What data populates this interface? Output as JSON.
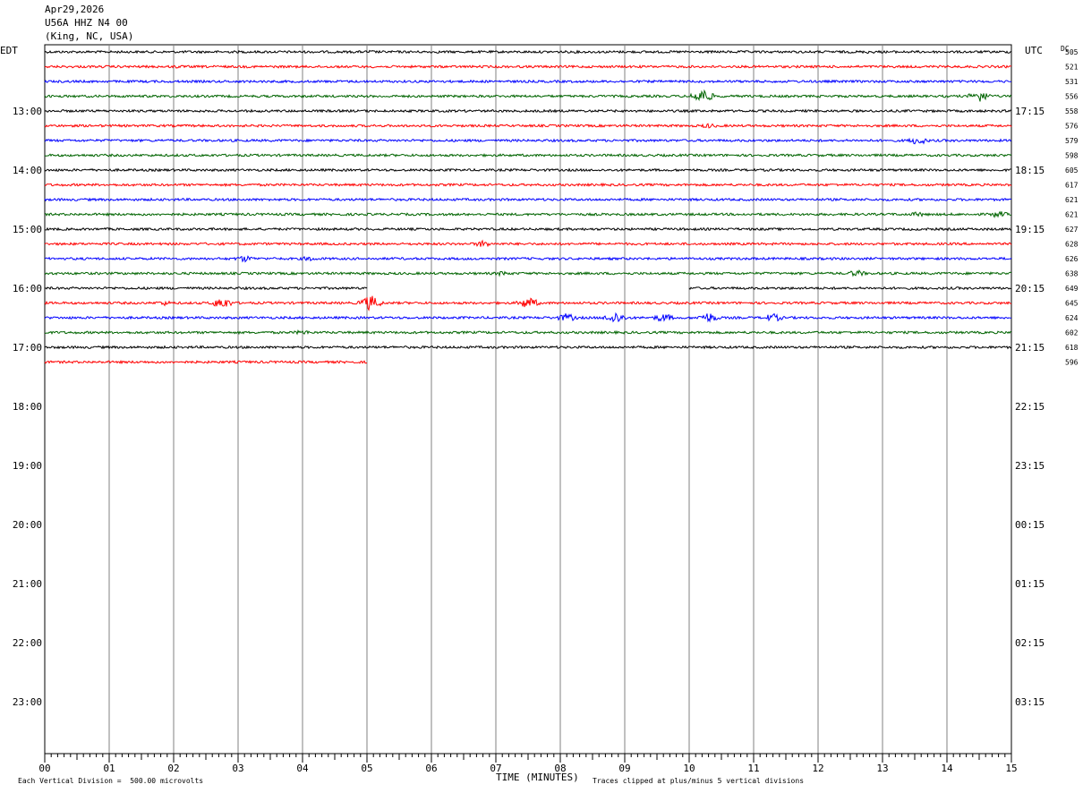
{
  "header": {
    "date": "Apr29,2026",
    "station": "U56A HHZ N4 00",
    "location": "(King, NC, USA)"
  },
  "left_tz": "EDT",
  "right_tz": "UTC",
  "dc_label": "DC",
  "xlabel": "TIME (MINUTES)",
  "footer": {
    "scale": "Each Vertical Division =  500.00 microvolts",
    "clip": "Traces clipped at plus/minus 5 vertical divisions"
  },
  "colors": {
    "black": "#000000",
    "red": "#ff0000",
    "blue": "#0000ff",
    "green": "#006400",
    "grid": "#808080"
  },
  "chart_data": {
    "type": "line",
    "title": "",
    "xlabel": "TIME (MINUTES)",
    "ylabel": "",
    "xlim": [
      0,
      15
    ],
    "x_ticks": [
      "00",
      "01",
      "02",
      "03",
      "04",
      "05",
      "06",
      "07",
      "08",
      "09",
      "10",
      "11",
      "12",
      "13",
      "14",
      "15"
    ],
    "left_hour_labels": [
      "13:00",
      "14:00",
      "15:00",
      "16:00",
      "17:00",
      "18:00",
      "19:00",
      "20:00",
      "21:00",
      "22:00",
      "23:00"
    ],
    "right_hour_labels": [
      "17:15",
      "18:15",
      "19:15",
      "20:15",
      "21:15",
      "22:15",
      "23:15",
      "00:15",
      "01:15",
      "02:15",
      "03:15"
    ],
    "trace_count_visible": 22,
    "trace_color_cycle": [
      "black",
      "red",
      "blue",
      "green"
    ],
    "dc_offsets": [
      505,
      521,
      531,
      556,
      558,
      576,
      579,
      598,
      605,
      617,
      621,
      621,
      627,
      628,
      626,
      638,
      649,
      645,
      624,
      602,
      618,
      596
    ],
    "data_gap": {
      "trace_index": 16,
      "from_minute": 5,
      "to_minute": 10
    },
    "last_trace_end_minute": 5,
    "events": [
      {
        "trace": 0,
        "minute": 5.05,
        "amp": 2
      },
      {
        "trace": 0,
        "minute": 12.8,
        "amp": 2
      },
      {
        "trace": 1,
        "minute": 2.05,
        "amp": 2
      },
      {
        "trace": 3,
        "minute": 10.2,
        "amp": 9
      },
      {
        "trace": 3,
        "minute": 14.5,
        "amp": 7
      },
      {
        "trace": 5,
        "minute": 10.3,
        "amp": 3
      },
      {
        "trace": 6,
        "minute": 13.55,
        "amp": 5
      },
      {
        "trace": 11,
        "minute": 13.55,
        "amp": 3
      },
      {
        "trace": 11,
        "minute": 14.8,
        "amp": 4
      },
      {
        "trace": 13,
        "minute": 6.8,
        "amp": 4
      },
      {
        "trace": 14,
        "minute": 3.1,
        "amp": 4
      },
      {
        "trace": 14,
        "minute": 4.1,
        "amp": 3
      },
      {
        "trace": 15,
        "minute": 7.1,
        "amp": 3
      },
      {
        "trace": 15,
        "minute": 12.6,
        "amp": 4
      },
      {
        "trace": 17,
        "minute": 1.85,
        "amp": 3
      },
      {
        "trace": 17,
        "minute": 2.75,
        "amp": 7
      },
      {
        "trace": 17,
        "minute": 5.05,
        "amp": 9
      },
      {
        "trace": 17,
        "minute": 7.5,
        "amp": 7
      },
      {
        "trace": 18,
        "minute": 8.1,
        "amp": 5
      },
      {
        "trace": 18,
        "minute": 8.85,
        "amp": 7
      },
      {
        "trace": 18,
        "minute": 9.6,
        "amp": 5
      },
      {
        "trace": 18,
        "minute": 10.3,
        "amp": 6
      },
      {
        "trace": 18,
        "minute": 11.3,
        "amp": 5
      },
      {
        "trace": 19,
        "minute": 4.0,
        "amp": 3
      }
    ]
  }
}
